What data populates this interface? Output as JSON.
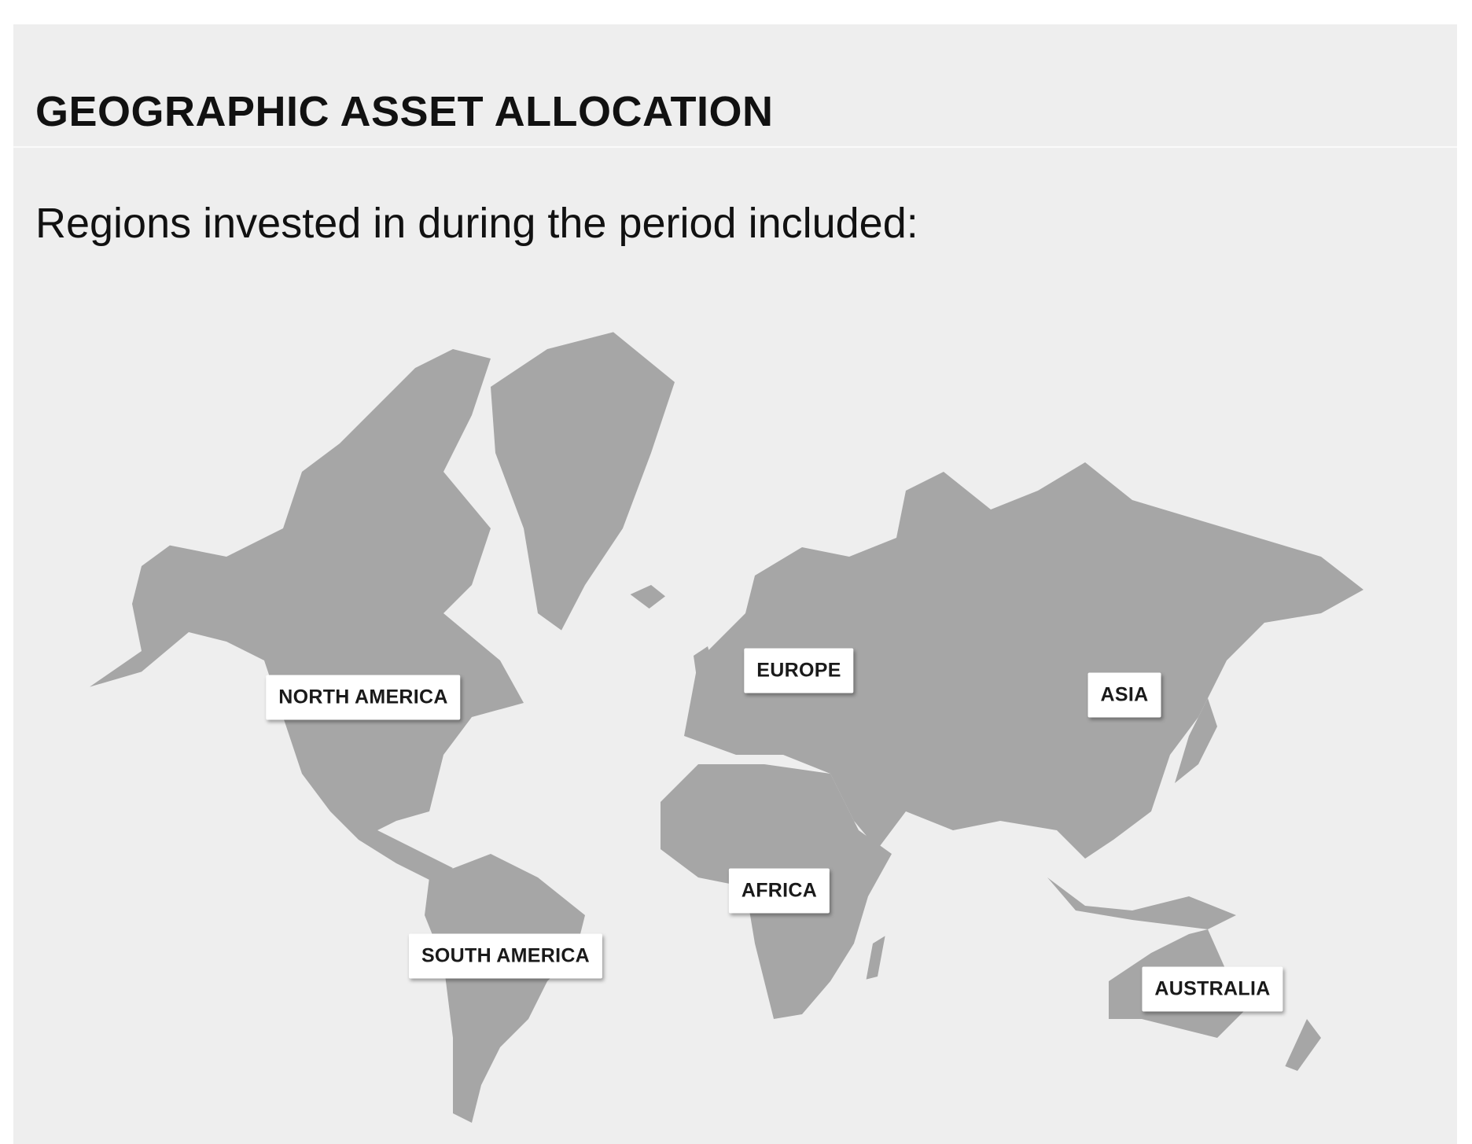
{
  "header": {
    "title": "GEOGRAPHIC ASSET ALLOCATION"
  },
  "subtitle": "Regions invested in during the period included:",
  "regions": [
    "NORTH AMERICA",
    "EUROPE",
    "ASIA",
    "AFRICA",
    "SOUTH AMERICA",
    "AUSTRALIA"
  ]
}
